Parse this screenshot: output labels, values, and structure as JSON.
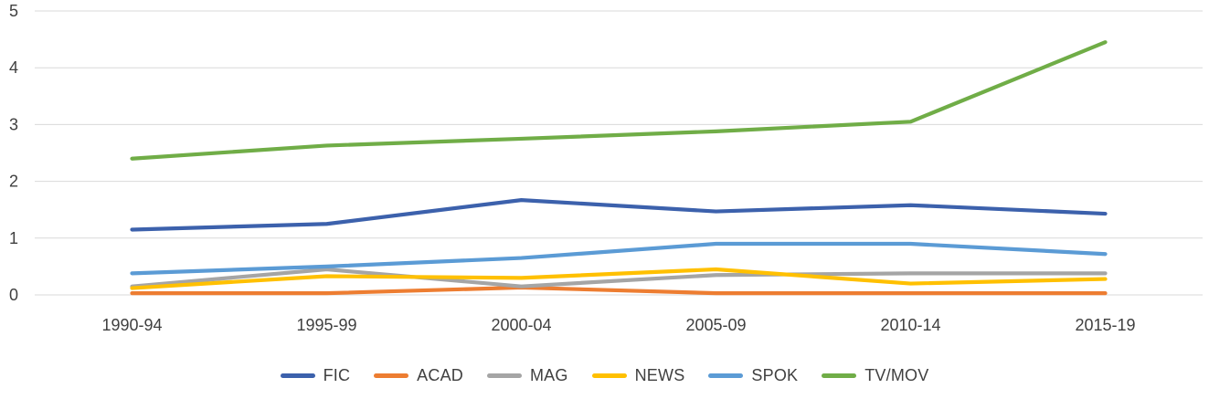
{
  "chart_data": {
    "type": "line",
    "title": "",
    "xlabel": "",
    "ylabel": "",
    "categories": [
      "1990-94",
      "1995-99",
      "2000-04",
      "2005-09",
      "2010-14",
      "2015-19"
    ],
    "series": [
      {
        "name": "FIC",
        "color": "#3C61AC",
        "values": [
          1.15,
          1.25,
          1.67,
          1.47,
          1.58,
          1.43
        ]
      },
      {
        "name": "ACAD",
        "color": "#ED7D31",
        "values": [
          0.03,
          0.03,
          0.13,
          0.03,
          0.03,
          0.03
        ]
      },
      {
        "name": "MAG",
        "color": "#A5A5A5",
        "values": [
          0.15,
          0.45,
          0.15,
          0.35,
          0.38,
          0.38
        ]
      },
      {
        "name": "NEWS",
        "color": "#FFC000",
        "values": [
          0.12,
          0.33,
          0.3,
          0.45,
          0.2,
          0.28
        ]
      },
      {
        "name": "SPOK",
        "color": "#5B9BD5",
        "values": [
          0.38,
          0.5,
          0.65,
          0.9,
          0.9,
          0.72
        ]
      },
      {
        "name": "TV/MOV",
        "color": "#70AD47",
        "values": [
          2.4,
          2.63,
          2.75,
          2.88,
          3.05,
          4.45
        ]
      }
    ],
    "ylim": [
      0,
      5
    ],
    "ytick_step": 1,
    "grid": true,
    "legend_position": "bottom",
    "gridline_color": "#D9D9D9",
    "text_color": "#404040"
  }
}
